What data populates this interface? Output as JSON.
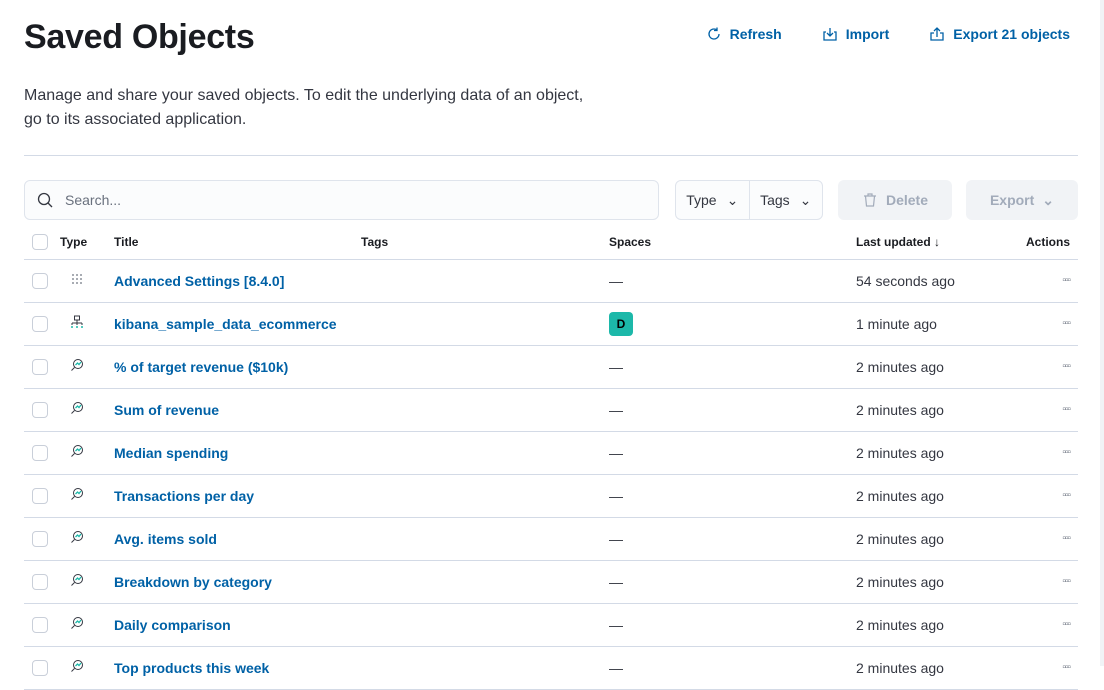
{
  "header": {
    "title": "Saved Objects",
    "refresh": "Refresh",
    "import": "Import",
    "export_all": "Export 21 objects",
    "description": "Manage and share your saved objects. To edit the underlying data of an object, go to its associated application."
  },
  "toolbar": {
    "search_placeholder": "Search...",
    "type_filter": "Type",
    "tags_filter": "Tags",
    "delete": "Delete",
    "export": "Export"
  },
  "table": {
    "columns": {
      "type": "Type",
      "title": "Title",
      "tags": "Tags",
      "spaces": "Spaces",
      "last_updated": "Last updated",
      "actions": "Actions"
    },
    "sort": "descending",
    "rows": [
      {
        "type": "config",
        "title": "Advanced Settings [8.4.0]",
        "spaces": "—",
        "updated": "54 seconds ago"
      },
      {
        "type": "index-pattern",
        "title": "kibana_sample_data_ecommerce",
        "spaces": "D",
        "updated": "1 minute ago"
      },
      {
        "type": "visualization",
        "title": "% of target revenue ($10k)",
        "spaces": "—",
        "updated": "2 minutes ago"
      },
      {
        "type": "visualization",
        "title": "Sum of revenue",
        "spaces": "—",
        "updated": "2 minutes ago"
      },
      {
        "type": "visualization",
        "title": "Median spending",
        "spaces": "—",
        "updated": "2 minutes ago"
      },
      {
        "type": "visualization",
        "title": "Transactions per day",
        "spaces": "—",
        "updated": "2 minutes ago"
      },
      {
        "type": "visualization",
        "title": "Avg. items sold",
        "spaces": "—",
        "updated": "2 minutes ago"
      },
      {
        "type": "visualization",
        "title": "Breakdown by category",
        "spaces": "—",
        "updated": "2 minutes ago"
      },
      {
        "type": "visualization",
        "title": "Daily comparison",
        "spaces": "—",
        "updated": "2 minutes ago"
      },
      {
        "type": "visualization",
        "title": "Top products this week",
        "spaces": "—",
        "updated": "2 minutes ago"
      }
    ]
  },
  "colors": {
    "link": "#0061a6",
    "space_badge": "#1cb8a9"
  }
}
